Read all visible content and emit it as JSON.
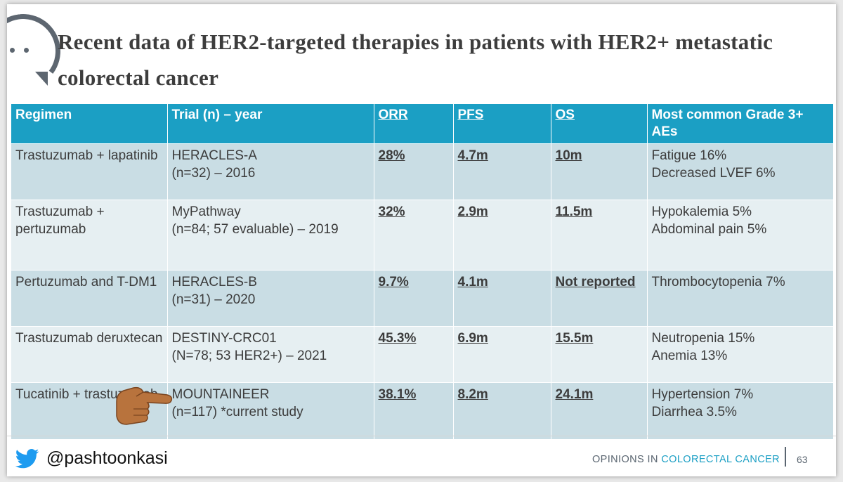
{
  "slide": {
    "title": "Recent data of HER2-targeted therapies in patients with HER2+ metastatic colorectal cancer",
    "logo_icon": "speech-bubble-icon",
    "pointer_icon": "pointing-hand-emoji-icon"
  },
  "table": {
    "headers": [
      "Regimen",
      "Trial (n) – year",
      "ORR",
      "PFS",
      "OS",
      "Most common Grade 3+ AEs"
    ],
    "rows": [
      {
        "regimen": "Trastuzumab + lapatinib",
        "trial": [
          "HERACLES-A",
          "(n=32) – 2016"
        ],
        "orr": "28%",
        "pfs": "4.7m",
        "os": "10m",
        "aes": [
          "Fatigue 16%",
          "Decreased LVEF 6%"
        ]
      },
      {
        "regimen": "Trastuzumab + pertuzumab",
        "trial": [
          "MyPathway",
          "(n=84; 57 evaluable) – 2019"
        ],
        "orr": "32%",
        "pfs": "2.9m",
        "os": "11.5m",
        "aes": [
          "Hypokalemia 5%",
          "Abdominal pain 5%"
        ]
      },
      {
        "regimen": "Pertuzumab and T-DM1",
        "trial": [
          "HERACLES-B",
          "(n=31) – 2020"
        ],
        "orr": "9.7%",
        "pfs": "4.1m",
        "os": "Not reported",
        "aes": [
          "Thrombocytopenia 7%"
        ]
      },
      {
        "regimen": "Trastuzumab deruxtecan",
        "trial": [
          "DESTINY-CRC01",
          "(N=78; 53 HER2+) – 2021"
        ],
        "orr": "45.3%",
        "pfs": "6.9m",
        "os": "15.5m",
        "aes": [
          "Neutropenia 15%",
          "Anemia 13%"
        ]
      },
      {
        "regimen": "Tucatinib + trastuzumab",
        "trial": [
          "MOUNTAINEER",
          "(n=117) *current study"
        ],
        "orr": "38.1%",
        "pfs": "8.2m",
        "os": "24.1m",
        "aes": [
          "Hypertension 7%",
          "Diarrhea 3.5%"
        ]
      }
    ]
  },
  "footer": {
    "twitter_icon": "twitter-bird-icon",
    "handle": "@pashtoonkasi",
    "brand_prefix": "OPINIONS IN ",
    "brand_accent": "COLORECTAL CANCER",
    "page_number": "63"
  },
  "colors": {
    "header_bg": "#1b9fc4",
    "row_dark": "#c9dde4",
    "row_light": "#e6eff2",
    "accent": "#1b9fc4"
  }
}
